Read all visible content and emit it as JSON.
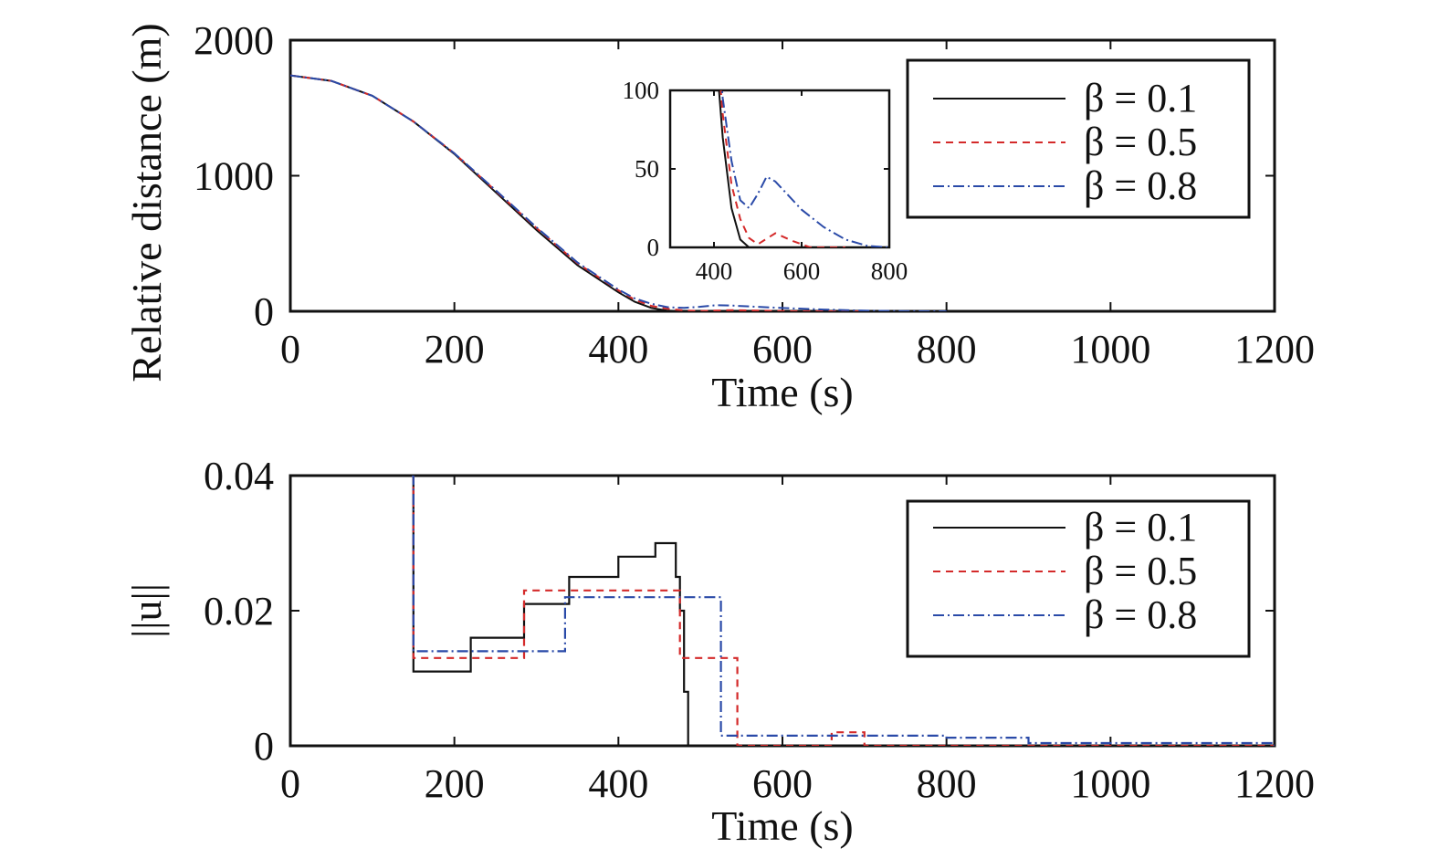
{
  "chart_data": [
    {
      "type": "line",
      "xlabel": "Time (s)",
      "ylabel": "Relative distance (m)",
      "xlim": [
        0,
        1200
      ],
      "ylim": [
        0,
        2000
      ],
      "xticks": [
        "0",
        "200",
        "400",
        "600",
        "800",
        "1000",
        "1200"
      ],
      "yticks": [
        "0",
        "1000",
        "2000"
      ],
      "grid": false,
      "legend_position": "top-right",
      "legend": [
        "β = 0.1",
        "β = 0.5",
        "β = 0.8"
      ],
      "series": [
        {
          "name": "β = 0.1",
          "color": "#111111",
          "style": "solid",
          "x": [
            0,
            50,
            100,
            150,
            200,
            250,
            300,
            350,
            400,
            420,
            440,
            460,
            480,
            500,
            600,
            700
          ],
          "y": [
            1740,
            1700,
            1590,
            1400,
            1160,
            880,
            600,
            340,
            140,
            70,
            25,
            5,
            0,
            0,
            0,
            0
          ]
        },
        {
          "name": "β = 0.5",
          "color": "#d42a2a",
          "style": "dashed",
          "x": [
            0,
            50,
            100,
            150,
            200,
            250,
            300,
            350,
            400,
            420,
            440,
            460,
            480,
            500,
            540,
            580,
            620,
            700
          ],
          "y": [
            1740,
            1700,
            1590,
            1400,
            1165,
            890,
            615,
            355,
            155,
            85,
            40,
            18,
            6,
            2,
            9,
            4,
            0,
            0
          ]
        },
        {
          "name": "β = 0.8",
          "color": "#2a4aa8",
          "style": "dashdot",
          "x": [
            0,
            50,
            100,
            150,
            200,
            250,
            300,
            350,
            400,
            420,
            440,
            460,
            480,
            500,
            520,
            540,
            560,
            600,
            650,
            700,
            750,
            800
          ],
          "y": [
            1740,
            1700,
            1590,
            1400,
            1165,
            895,
            620,
            360,
            160,
            95,
            55,
            30,
            25,
            34,
            45,
            42,
            36,
            24,
            13,
            5,
            1,
            0
          ]
        }
      ],
      "inset": {
        "xlim": [
          300,
          800
        ],
        "ylim": [
          0,
          100
        ],
        "xticks": [
          "400",
          "600",
          "800"
        ],
        "yticks": [
          "0",
          "50",
          "100"
        ]
      }
    },
    {
      "type": "line",
      "xlabel": "Time (s)",
      "ylabel": "||u||",
      "xlim": [
        0,
        1200
      ],
      "ylim": [
        0,
        0.04
      ],
      "xticks": [
        "0",
        "200",
        "400",
        "600",
        "800",
        "1000",
        "1200"
      ],
      "yticks": [
        "0",
        "0.02",
        "0.04"
      ],
      "grid": false,
      "legend_position": "top-right",
      "legend": [
        "β = 0.1",
        "β = 0.5",
        "β = 0.8"
      ],
      "series": [
        {
          "name": "β = 0.1",
          "color": "#111111",
          "style": "solid",
          "step": true,
          "x": [
            148,
            150,
            220,
            285,
            340,
            400,
            445,
            470,
            475,
            480,
            485,
            1200
          ],
          "y": [
            0.04,
            0.011,
            0.016,
            0.021,
            0.025,
            0.028,
            0.03,
            0.025,
            0.02,
            0.008,
            0,
            0
          ]
        },
        {
          "name": "β = 0.5",
          "color": "#d42a2a",
          "style": "dashed",
          "step": true,
          "x": [
            148,
            150,
            285,
            470,
            475,
            540,
            545,
            660,
            700,
            1200
          ],
          "y": [
            0.04,
            0.013,
            0.023,
            0.023,
            0.013,
            0.013,
            0.0,
            0.002,
            0.0,
            0.0
          ]
        },
        {
          "name": "β = 0.8",
          "color": "#2a4aa8",
          "style": "dashdot",
          "step": true,
          "x": [
            148,
            150,
            335,
            520,
            525,
            590,
            800,
            900,
            1200
          ],
          "y": [
            0.04,
            0.014,
            0.022,
            0.022,
            0.0015,
            0.0015,
            0.0012,
            0.0004,
            0.0
          ]
        }
      ]
    }
  ]
}
